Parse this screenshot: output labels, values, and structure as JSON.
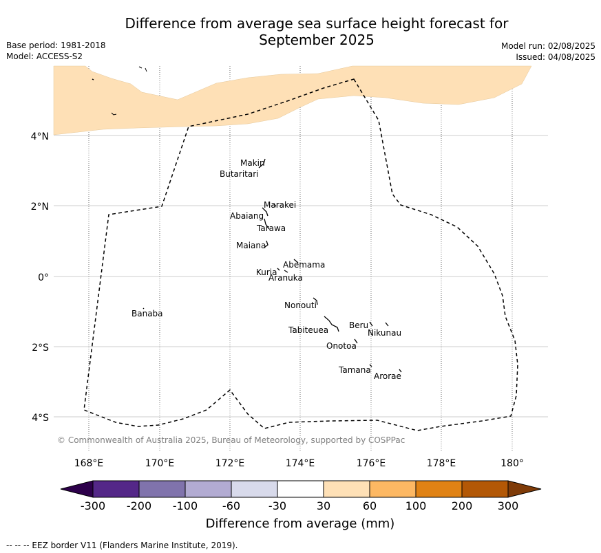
{
  "title_line1": "Difference from average sea surface height forecast for",
  "title_line2": "September 2025",
  "base_period": "Base period: 1981-2018",
  "model": "Model: ACCESS-S2",
  "model_run": "Model run: 02/08/2025",
  "issued": "Issued: 04/08/2025",
  "lon_ticks": [
    "168°E",
    "170°E",
    "172°E",
    "174°E",
    "176°E",
    "178°E",
    "180°"
  ],
  "lat_ticks": [
    "4°N",
    "2°N",
    "0°",
    "2°S",
    "4°S"
  ],
  "places": [
    {
      "name": "Makin"
    },
    {
      "name": "Butaritari"
    },
    {
      "name": "Marakei"
    },
    {
      "name": "Abaiang"
    },
    {
      "name": "Tarawa"
    },
    {
      "name": "Maiana"
    },
    {
      "name": "Abemama"
    },
    {
      "name": "Kuria"
    },
    {
      "name": "Aranuka"
    },
    {
      "name": "Nonouti"
    },
    {
      "name": "Banaba"
    },
    {
      "name": "Beru"
    },
    {
      "name": "Nikunau"
    },
    {
      "name": "Tabiteuea"
    },
    {
      "name": "Onotoa"
    },
    {
      "name": "Tamana"
    },
    {
      "name": "Arorae"
    }
  ],
  "credit": "© Commonwealth of Australia 2025, Bureau of Meteorology, supported by COSPPac",
  "colorbar": {
    "ticks": [
      "-300",
      "-200",
      "-100",
      "-60",
      "-30",
      "30",
      "60",
      "100",
      "200",
      "300"
    ],
    "label": "Difference from average (mm)",
    "colors": {
      "under": "#2d004b",
      "bins": [
        "#542788",
        "#8073ac",
        "#b2abd2",
        "#d8daeb",
        "#ffffff",
        "#fee0b6",
        "#fdb863",
        "#e08214",
        "#b35806"
      ],
      "over": "#7f3b08"
    }
  },
  "shaded_area_color": "#fee0b6",
  "eez_note": "--  --  -- EEZ border V11 (Flanders Marine Institute, 2019)."
}
